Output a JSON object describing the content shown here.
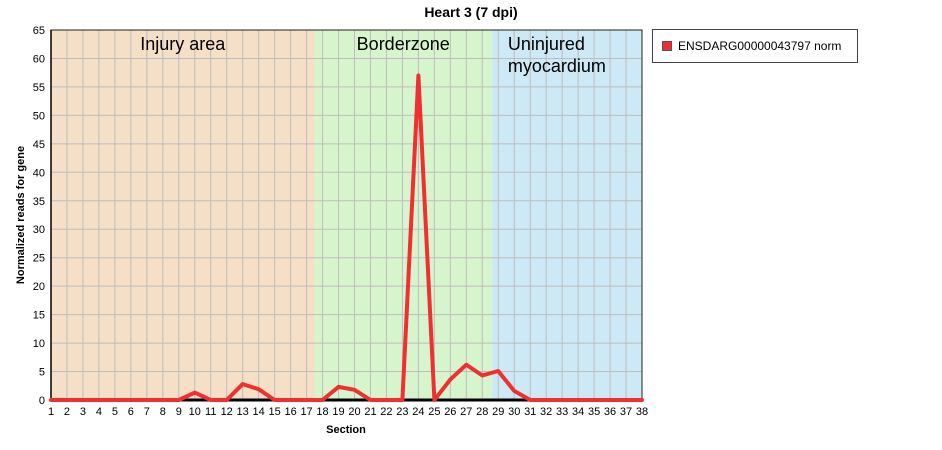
{
  "chart_data": {
    "type": "line",
    "title": "Heart 3 (7 dpi)",
    "xlabel": "Section",
    "ylabel": "Normalized reads for gene",
    "x": [
      1,
      2,
      3,
      4,
      5,
      6,
      7,
      8,
      9,
      10,
      11,
      12,
      13,
      14,
      15,
      16,
      17,
      18,
      19,
      20,
      21,
      22,
      23,
      24,
      25,
      26,
      27,
      28,
      29,
      30,
      31,
      32,
      33,
      34,
      35,
      36,
      37,
      38
    ],
    "series": [
      {
        "name": "ENSDARG00000043797 norm",
        "color": "#f03030",
        "values": [
          0,
          0,
          0,
          0,
          0,
          0,
          0,
          0,
          0,
          1.3,
          0,
          0,
          2.8,
          1.9,
          0,
          0,
          0,
          0,
          2.3,
          1.8,
          0,
          0,
          0,
          57,
          0,
          3.6,
          6.2,
          4.3,
          5.1,
          1.6,
          0,
          0,
          0,
          0,
          0,
          0,
          0,
          0
        ]
      }
    ],
    "xlim": [
      1,
      38
    ],
    "ylim": [
      0,
      65
    ],
    "ytick_step": 5,
    "grid": true,
    "legend_position": "right",
    "regions": [
      {
        "label": "Injury area",
        "from": 1,
        "to": 17.5,
        "color": "#f5dfc6"
      },
      {
        "label": "Borderzone",
        "from": 17.5,
        "to": 28.6,
        "color": "#d7f5cd"
      },
      {
        "label": "Uninjured myocardium",
        "from": 28.6,
        "to": 38,
        "color": "#cce9f5"
      }
    ]
  }
}
